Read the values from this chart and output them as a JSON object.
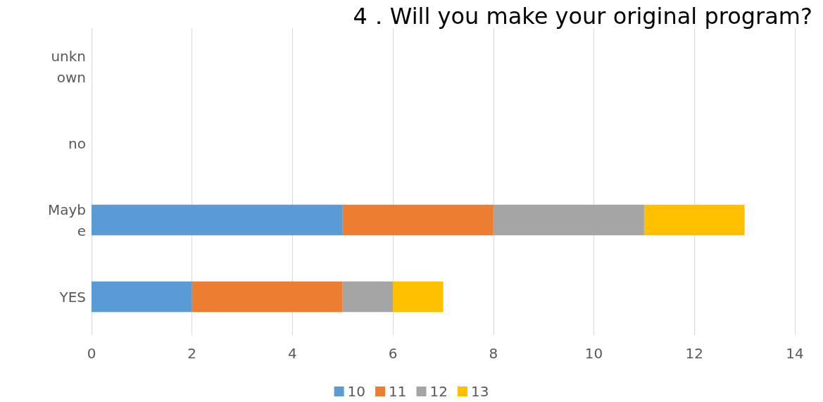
{
  "chart_data": {
    "type": "bar",
    "title": "4．Will you make your original program?",
    "orientation": "horizontal",
    "stacked": true,
    "categories": [
      "unknown",
      "no",
      "Maybe",
      "YES"
    ],
    "series": [
      {
        "name": "10",
        "color": "#5b9bd5",
        "values": [
          0,
          0,
          5,
          2
        ]
      },
      {
        "name": "11",
        "color": "#ed7d31",
        "values": [
          0,
          0,
          3,
          3
        ]
      },
      {
        "name": "12",
        "color": "#a5a5a5",
        "values": [
          0,
          0,
          3,
          1
        ]
      },
      {
        "name": "13",
        "color": "#ffc000",
        "values": [
          0,
          0,
          2,
          1
        ]
      }
    ],
    "xlim": [
      0,
      14
    ],
    "xticks": [
      0,
      2,
      4,
      6,
      8,
      10,
      12,
      14
    ],
    "grid": "x",
    "legend": "bottom"
  }
}
